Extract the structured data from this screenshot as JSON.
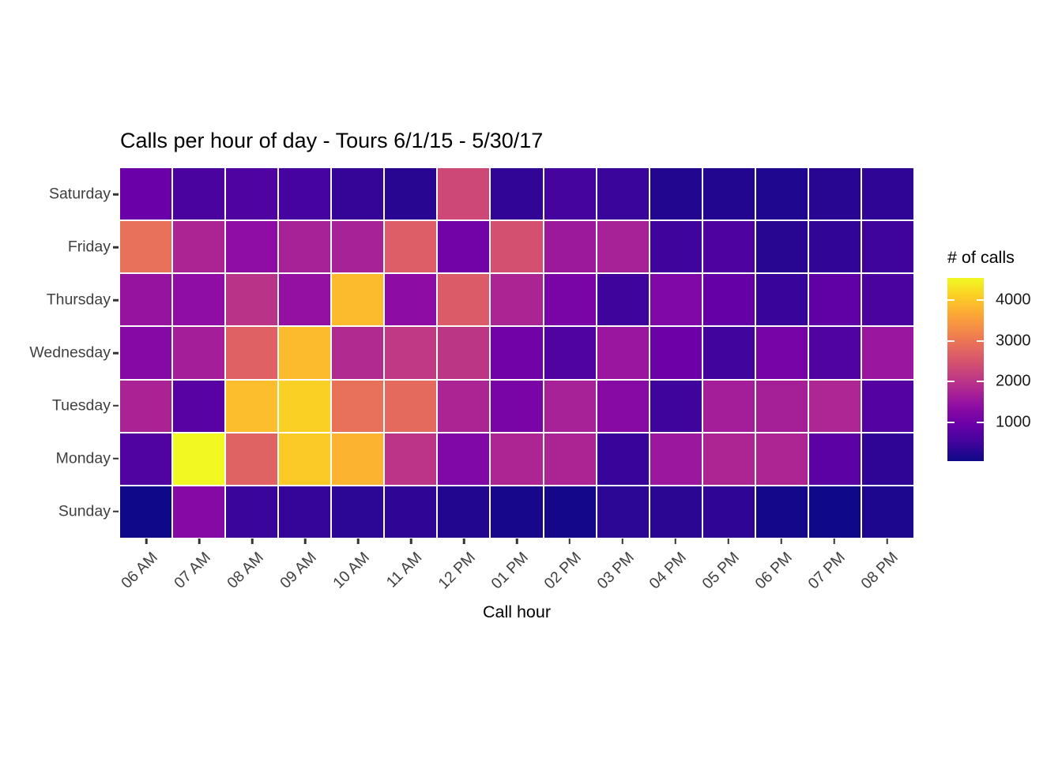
{
  "chart_data": {
    "type": "heatmap",
    "title": "Calls per hour of day - Tours 6/1/15 - 5/30/17",
    "xlabel": "Call hour",
    "x_categories": [
      "06 AM",
      "07 AM",
      "08 AM",
      "09 AM",
      "10 AM",
      "11 AM",
      "12 PM",
      "01 PM",
      "02 PM",
      "03 PM",
      "04 PM",
      "05 PM",
      "06 PM",
      "07 PM",
      "08 PM"
    ],
    "y_categories_top_to_bottom": [
      "Saturday",
      "Friday",
      "Thursday",
      "Wednesday",
      "Tuesday",
      "Monday",
      "Sunday"
    ],
    "legend": {
      "title": "# of calls",
      "ticks": [
        1000,
        2000,
        3000,
        4000
      ],
      "domain_min": 50,
      "domain_max": 4550
    },
    "colormap": {
      "name": "plasma",
      "stops": [
        "#0d0887",
        "#41049d",
        "#6a00a8",
        "#8f0da4",
        "#b12a90",
        "#cc4778",
        "#e16462",
        "#f2844b",
        "#fca636",
        "#fcce25",
        "#f0f921"
      ]
    },
    "grid_line_color": "#ffffff",
    "axis_text_color": "#404040",
    "series": [
      {
        "name": "Saturday",
        "values": [
          950,
          600,
          650,
          570,
          400,
          280,
          2320,
          360,
          550,
          430,
          230,
          230,
          210,
          280,
          340
        ]
      },
      {
        "name": "Friday",
        "values": [
          2930,
          1760,
          1400,
          1720,
          1720,
          2660,
          1040,
          2440,
          1580,
          1720,
          480,
          640,
          280,
          360,
          480
        ]
      },
      {
        "name": "Thursday",
        "values": [
          1490,
          1400,
          1990,
          1450,
          3880,
          1360,
          2620,
          1760,
          1130,
          480,
          1220,
          900,
          410,
          840,
          610
        ]
      },
      {
        "name": "Wednesday",
        "values": [
          1270,
          1670,
          2700,
          3880,
          1850,
          2080,
          2030,
          1020,
          660,
          1540,
          970,
          500,
          1090,
          660,
          1540
        ]
      },
      {
        "name": "Tuesday",
        "values": [
          1740,
          750,
          3920,
          4120,
          2930,
          2840,
          1760,
          1130,
          1720,
          1310,
          480,
          1670,
          1690,
          1800,
          720
        ]
      },
      {
        "name": "Monday",
        "values": [
          660,
          4550,
          2730,
          4060,
          3810,
          2010,
          1220,
          1780,
          1760,
          410,
          1560,
          1780,
          1780,
          770,
          340
        ]
      },
      {
        "name": "Sunday",
        "values": [
          70,
          1270,
          430,
          390,
          320,
          340,
          230,
          140,
          95,
          320,
          300,
          340,
          120,
          70,
          190
        ]
      }
    ]
  }
}
